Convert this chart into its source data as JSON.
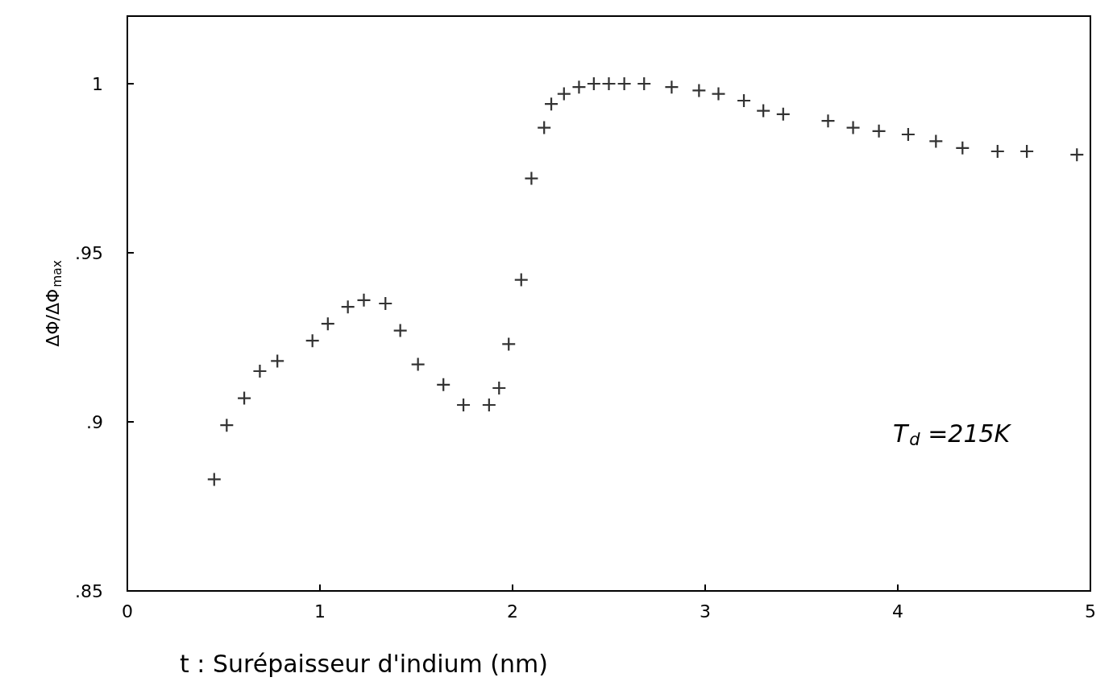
{
  "chart_data": {
    "type": "scatter",
    "xlabel": "t : Surépaisseur d'indium (nm)",
    "ylabel": "ΔΦ/ΔΦ$_{max}$",
    "annotations": [
      "T$_{d}$ =215K"
    ],
    "xlim": [
      0,
      5
    ],
    "ylim": [
      0.85,
      1.02
    ],
    "xticks": [
      0,
      1,
      2,
      3,
      4,
      5
    ],
    "yticks": [
      {
        "value": 0.85,
        "label": ".85"
      },
      {
        "value": 0.9,
        "label": ".9"
      },
      {
        "value": 0.95,
        "label": ".95"
      },
      {
        "value": 1,
        "label": "1"
      }
    ],
    "grid": false,
    "marker": "cross",
    "series": [
      {
        "color": "#000000",
        "x": [
          0.451,
          0.516,
          0.607,
          0.688,
          0.779,
          0.961,
          1.041,
          1.145,
          1.228,
          1.34,
          1.417,
          1.509,
          1.641,
          1.745,
          1.878,
          1.93,
          1.98,
          2.045,
          2.098,
          2.164,
          2.201,
          2.267,
          2.345,
          2.422,
          2.5,
          2.58,
          2.683,
          2.826,
          2.968,
          3.069,
          3.201,
          3.302,
          3.405,
          3.638,
          3.768,
          3.902,
          4.054,
          4.198,
          4.336,
          4.518,
          4.67,
          4.93
        ],
        "values": [
          0.883,
          0.899,
          0.907,
          0.915,
          0.918,
          0.924,
          0.929,
          0.934,
          0.936,
          0.935,
          0.927,
          0.917,
          0.911,
          0.905,
          0.905,
          0.91,
          0.923,
          0.942,
          0.972,
          0.987,
          0.994,
          0.997,
          0.999,
          1.0,
          1.0,
          1.0,
          1.0,
          0.999,
          0.998,
          0.997,
          0.995,
          0.992,
          0.991,
          0.989,
          0.987,
          0.986,
          0.985,
          0.983,
          0.981,
          0.98,
          0.98,
          0.979
        ]
      }
    ]
  }
}
